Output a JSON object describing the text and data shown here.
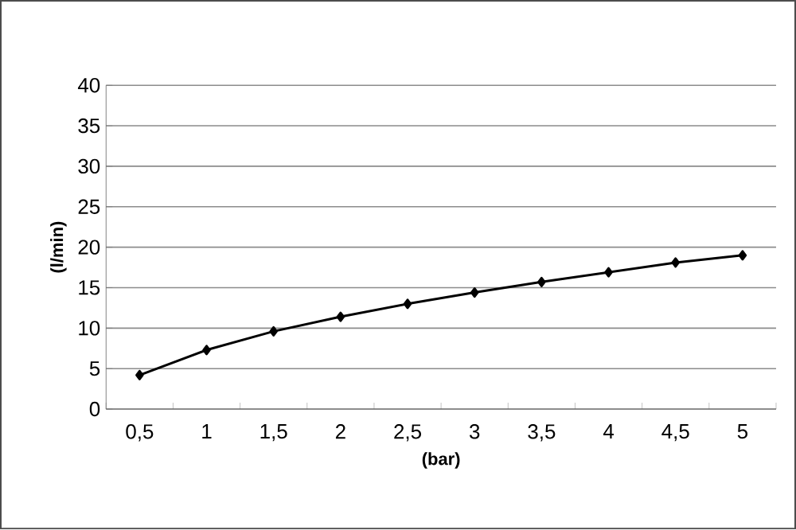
{
  "chart_data": {
    "type": "line",
    "xlabel": "(bar)",
    "ylabel": "(l/min)",
    "categories": [
      "0,5",
      "1",
      "1,5",
      "2",
      "2,5",
      "3",
      "3,5",
      "4",
      "4,5",
      "5"
    ],
    "values": [
      4.2,
      7.3,
      9.6,
      11.4,
      13.0,
      14.4,
      15.7,
      16.9,
      18.1,
      19.0
    ],
    "color": "#000000",
    "marker": "diamond",
    "line_style": "solid",
    "grid": "y",
    "ylim": [
      0,
      40
    ],
    "yticks": [
      0,
      5,
      10,
      15,
      20,
      25,
      30,
      35,
      40
    ]
  }
}
